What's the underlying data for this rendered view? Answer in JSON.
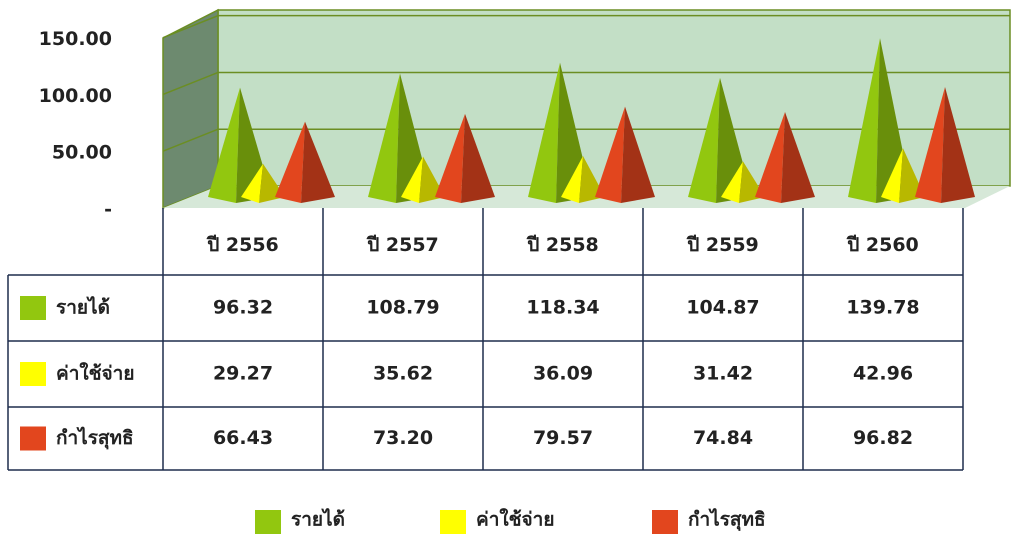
{
  "chart_data": {
    "type": "pyramid",
    "categories": [
      "ปี 2556",
      "ปี 2557",
      "ปี 2558",
      "ปี 2559",
      "ปี 2560"
    ],
    "series": [
      {
        "name": "รายได้",
        "color": "#92c70f",
        "values": [
          96.32,
          108.79,
          118.34,
          104.87,
          139.78
        ],
        "value_labels": [
          "96.32",
          "108.79",
          "118.34",
          "104.87",
          "139.78"
        ]
      },
      {
        "name": "ค่าใช้จ่าย",
        "color": "#ffff00",
        "values": [
          29.27,
          35.62,
          36.09,
          31.42,
          42.96
        ],
        "value_labels": [
          "29.27",
          "35.62",
          "36.09",
          "31.42",
          "42.96"
        ]
      },
      {
        "name": "กำไรสุทธิ",
        "color": "#e2461e",
        "values": [
          66.43,
          73.2,
          79.57,
          74.84,
          96.82
        ],
        "value_labels": [
          "66.43",
          "73.20",
          "79.57",
          "74.84",
          "96.82"
        ]
      }
    ],
    "ylim": [
      0,
      155
    ],
    "yticks": [
      {
        "value": 0,
        "label": "-"
      },
      {
        "value": 50,
        "label": "50.00"
      },
      {
        "value": 100,
        "label": "100.00"
      },
      {
        "value": 150,
        "label": "150.00"
      }
    ],
    "grid": true
  }
}
